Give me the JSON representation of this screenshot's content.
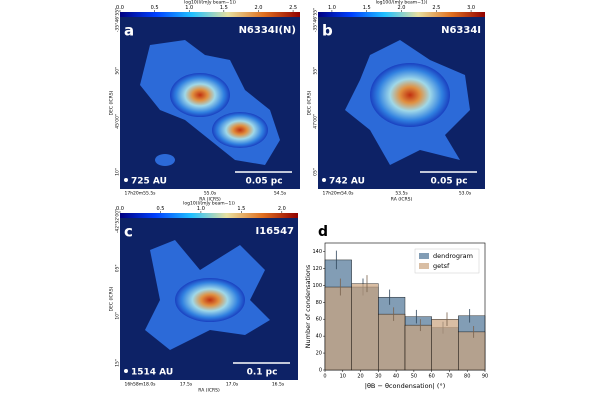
{
  "panels": [
    {
      "letter": "a",
      "name": "N6334I(N)",
      "colorbar_label": "log10(I/(mJy beam−1))",
      "clim": [
        0,
        2.6
      ],
      "cticks": [
        {
          "value": 0,
          "label": "0.0"
        },
        0.5,
        {
          "value": 1,
          "label": "1.0"
        },
        1.5,
        {
          "value": 2,
          "label": "2.0"
        },
        2.5
      ],
      "beam": "725 AU",
      "scalebar": "0.05 pc",
      "xlabel": "RA (ICRS)",
      "ylabel": "DEC (ICRS)",
      "xticklabels": [
        "17h20m55.5s",
        "55.0s",
        "54.5s"
      ],
      "yticklabels": [
        "-35°46'55\"",
        "50\"",
        "45'00\"",
        "10\""
      ]
    },
    {
      "letter": "b",
      "name": "N6334I",
      "colorbar_label": "log10(I/(mJy beam−1))",
      "clim": [
        0.8,
        3.2
      ],
      "cticks": [
        {
          "value": 1,
          "label": "1.0"
        },
        1.5,
        {
          "value": 2,
          "label": "2.0"
        },
        2.5,
        {
          "value": 3,
          "label": "3.0"
        }
      ],
      "beam": "742 AU",
      "scalebar": "0.05 pc",
      "xlabel": "RA (ICRS)",
      "ylabel": "DEC (ICRS)",
      "xticklabels": [
        "17h20m54.0s",
        "53.5s",
        "53.0s"
      ],
      "yticklabels": [
        "-35°46'55\"",
        "55\"",
        "47'00\"",
        "05\""
      ]
    },
    {
      "letter": "c",
      "name": "I16547",
      "colorbar_label": "log10(I/(mJy beam−1))",
      "clim": [
        0,
        2.2
      ],
      "cticks": [
        {
          "value": 0,
          "label": "0.0"
        },
        0.5,
        {
          "value": 1,
          "label": "1.0"
        },
        1.5,
        {
          "value": 2,
          "label": "2.0"
        }
      ],
      "beam": "1514 AU",
      "scalebar": "0.1 pc",
      "xlabel": "RA (ICRS)",
      "ylabel": "DEC (ICRS)",
      "xticklabels": [
        "16h58m18.0s",
        "17.5s",
        "17.0s",
        "16.5s"
      ],
      "yticklabels": [
        "-42°52'00\"",
        "05\"",
        "10\"",
        "15\""
      ]
    }
  ],
  "chart_data": {
    "type": "histogram",
    "letter": "d",
    "xlabel": "|θB − θcondensation| (°)",
    "ylabel": "Number of condensations",
    "bins": [
      0,
      15,
      30,
      45,
      60,
      75,
      90
    ],
    "series": [
      {
        "name": "dendrogram",
        "color": "#4d7396",
        "values": [
          130,
          98,
          86,
          63,
          50,
          64
        ],
        "errors": [
          11,
          10,
          9,
          8,
          7,
          8
        ]
      },
      {
        "name": "getsf",
        "color": "#c9a27e",
        "values": [
          98,
          102,
          66,
          53,
          60,
          45
        ],
        "errors": [
          10,
          10,
          8,
          7,
          8,
          7
        ]
      }
    ],
    "xlim": [
      0,
      90
    ],
    "xticks": [
      0,
      10,
      20,
      30,
      40,
      50,
      60,
      70,
      80,
      90
    ],
    "ylim": [
      0,
      150
    ],
    "yticks": [
      0,
      20,
      40,
      60,
      80,
      100,
      120,
      140
    ],
    "legend": "upper right"
  }
}
